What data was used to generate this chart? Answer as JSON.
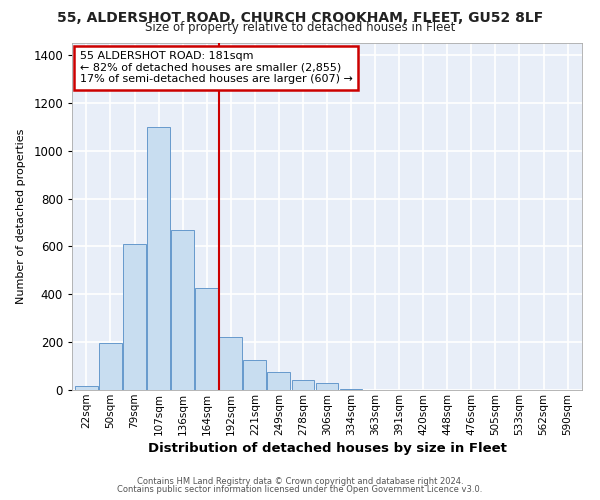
{
  "title_line1": "55, ALDERSHOT ROAD, CHURCH CROOKHAM, FLEET, GU52 8LF",
  "title_line2": "Size of property relative to detached houses in Fleet",
  "xlabel": "Distribution of detached houses by size in Fleet",
  "ylabel": "Number of detached properties",
  "bar_labels": [
    "22sqm",
    "50sqm",
    "79sqm",
    "107sqm",
    "136sqm",
    "164sqm",
    "192sqm",
    "221sqm",
    "249sqm",
    "278sqm",
    "306sqm",
    "334sqm",
    "363sqm",
    "391sqm",
    "420sqm",
    "448sqm",
    "476sqm",
    "505sqm",
    "533sqm",
    "562sqm",
    "590sqm"
  ],
  "bar_values": [
    15,
    195,
    610,
    1100,
    670,
    425,
    220,
    125,
    75,
    40,
    28,
    5,
    2,
    0,
    0,
    0,
    0,
    0,
    0,
    0,
    0
  ],
  "bar_color": "#c8ddf0",
  "bar_edge_color": "#6699cc",
  "vline_color": "#cc0000",
  "annotation_title": "55 ALDERSHOT ROAD: 181sqm",
  "annotation_line2": "← 82% of detached houses are smaller (2,855)",
  "annotation_line3": "17% of semi-detached houses are larger (607) →",
  "annotation_box_color": "#cc0000",
  "ylim": [
    0,
    1452
  ],
  "yticks": [
    0,
    200,
    400,
    600,
    800,
    1000,
    1200,
    1400
  ],
  "footer_line1": "Contains HM Land Registry data © Crown copyright and database right 2024.",
  "footer_line2": "Contains public sector information licensed under the Open Government Licence v3.0.",
  "fig_bg_color": "#ffffff",
  "plot_bg_color": "#e8eef8"
}
